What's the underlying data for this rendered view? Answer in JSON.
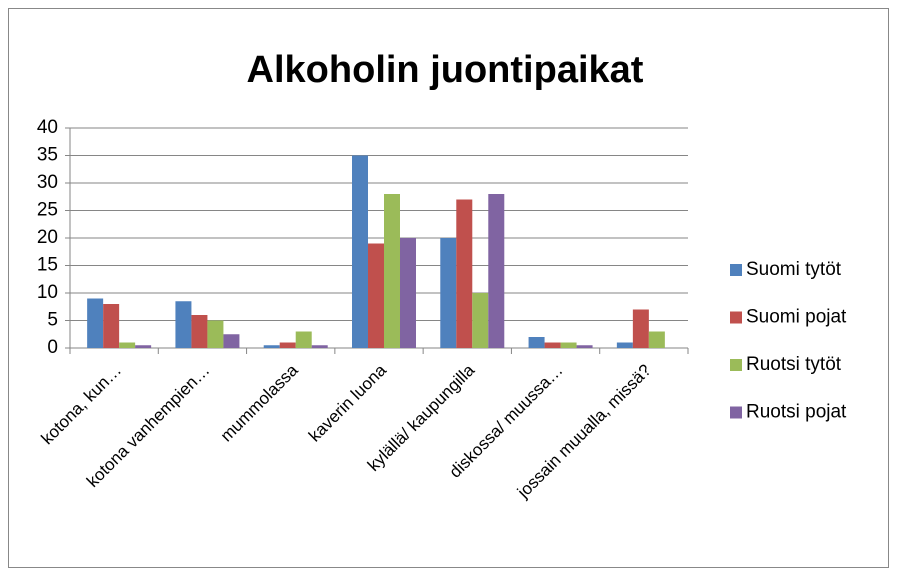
{
  "chart_data": {
    "type": "bar",
    "title": "Alkoholin juontipaikat",
    "categories": [
      "kotona, kun…",
      "kotona vanhempien…",
      "mummolassa",
      "kaverin luona",
      "kylällä/ kaupungilla",
      "diskossa/ muussa…",
      "jossain muualla, missä?"
    ],
    "series": [
      {
        "name": "Suomi tytöt",
        "color": "#4f81bd",
        "values": [
          9,
          8.5,
          0.5,
          35,
          20,
          2,
          1
        ]
      },
      {
        "name": "Suomi pojat",
        "color": "#c0504d",
        "values": [
          8,
          6,
          1,
          19,
          27,
          1,
          7
        ]
      },
      {
        "name": "Ruotsi tytöt",
        "color": "#9bbb59",
        "values": [
          1,
          5,
          3,
          28,
          10,
          1,
          3
        ]
      },
      {
        "name": "Ruotsi pojat",
        "color": "#8064a2",
        "values": [
          0.5,
          2.5,
          0.5,
          20,
          28,
          0.5,
          0
        ]
      }
    ],
    "ylim": [
      0,
      40
    ],
    "yticks": [
      0,
      5,
      10,
      15,
      20,
      25,
      30,
      35,
      40
    ],
    "grid": true,
    "legend": "right"
  }
}
